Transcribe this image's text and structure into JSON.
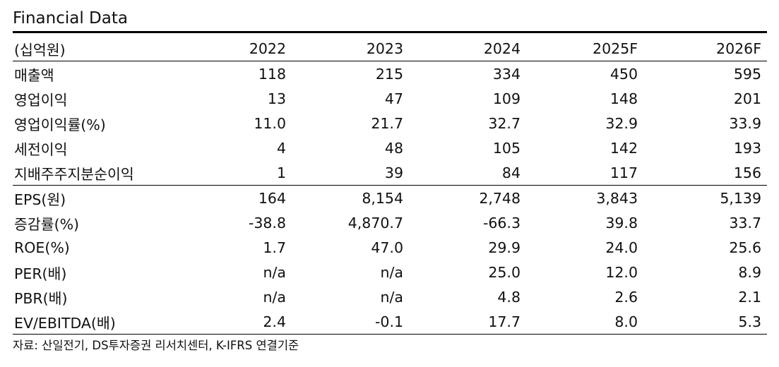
{
  "title": "Financial Data",
  "header": {
    "unit": "(십억원)",
    "years": [
      "2022",
      "2023",
      "2024",
      "2025F",
      "2026F"
    ]
  },
  "rows": [
    {
      "label": "매출액",
      "values": [
        "118",
        "215",
        "334",
        "450",
        "595"
      ]
    },
    {
      "label": "영업이익",
      "values": [
        "13",
        "47",
        "109",
        "148",
        "201"
      ]
    },
    {
      "label": "영업이익률(%)",
      "values": [
        "11.0",
        "21.7",
        "32.7",
        "32.9",
        "33.9"
      ]
    },
    {
      "label": "세전이익",
      "values": [
        "4",
        "48",
        "105",
        "142",
        "193"
      ]
    },
    {
      "label": "지배주주지분순이익",
      "values": [
        "1",
        "39",
        "84",
        "117",
        "156"
      ]
    },
    {
      "label": "EPS(원)",
      "values": [
        "164",
        "8,154",
        "2,748",
        "3,843",
        "5,139"
      ]
    },
    {
      "label": "증감률(%)",
      "values": [
        "-38.8",
        "4,870.7",
        "-66.3",
        "39.8",
        "33.7"
      ]
    },
    {
      "label": "ROE(%)",
      "values": [
        "1.7",
        "47.0",
        "29.9",
        "24.0",
        "25.6"
      ]
    },
    {
      "label": "PER(배)",
      "values": [
        "n/a",
        "n/a",
        "25.0",
        "12.0",
        "8.9"
      ]
    },
    {
      "label": "PBR(배)",
      "values": [
        "n/a",
        "n/a",
        "4.8",
        "2.6",
        "2.1"
      ]
    },
    {
      "label": "EV/EBITDA(배)",
      "values": [
        "2.4",
        "-0.1",
        "17.7",
        "8.0",
        "5.3"
      ]
    }
  ],
  "source": "자료: 산일전기, DS투자증권 리서치센터, K-IFRS 연결기준"
}
